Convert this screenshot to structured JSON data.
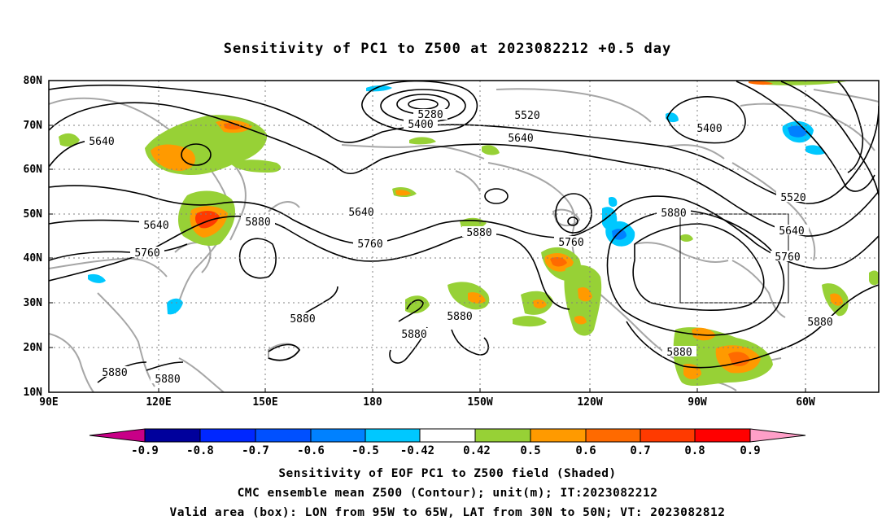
{
  "title": "Sensitivity of PC1 to Z500 at 2023082212 +0.5 day",
  "map": {
    "lon_labels": [
      "90E",
      "120E",
      "150E",
      "180",
      "150W",
      "120W",
      "90W",
      "60W"
    ],
    "lat_labels": [
      "10N",
      "20N",
      "30N",
      "40N",
      "50N",
      "60N",
      "70N",
      "80N"
    ],
    "valid_box": {
      "lon_from": "95W",
      "lon_to": "65W",
      "lat_from": "30N",
      "lat_to": "50N"
    },
    "contour_labels": [
      "5280",
      "5400",
      "5520",
      "5640",
      "5640",
      "5640",
      "5640",
      "5640",
      "5760",
      "5760",
      "5760",
      "5760",
      "5880",
      "5880",
      "5880",
      "5880",
      "5880",
      "5880",
      "5880",
      "5880",
      "5880",
      "5400",
      "5520"
    ]
  },
  "colorbar": {
    "labels": [
      "-0.9",
      "-0.8",
      "-0.7",
      "-0.6",
      "-0.5",
      "-0.42",
      "0.42",
      "0.5",
      "0.6",
      "0.7",
      "0.8",
      "0.9"
    ],
    "colors": [
      "#00009c",
      "#0027ff",
      "#0050ff",
      "#0081ff",
      "#00c8ff",
      "#ffffff",
      "#97d136",
      "#ff9a00",
      "#ff6a00",
      "#ff3a00",
      "#ff0000"
    ],
    "left_triangle_color": "#c80087",
    "right_triangle_color": "#ff9fc8"
  },
  "caption": {
    "line1": "Sensitivity of EOF PC1 to Z500 field (Shaded)",
    "line2": "CMC ensemble mean Z500 (Contour); unit(m); IT:2023082212",
    "line3": "Valid area (box): LON from 95W to 65W, LAT from 30N to 50N; VT: 2023082812"
  }
}
